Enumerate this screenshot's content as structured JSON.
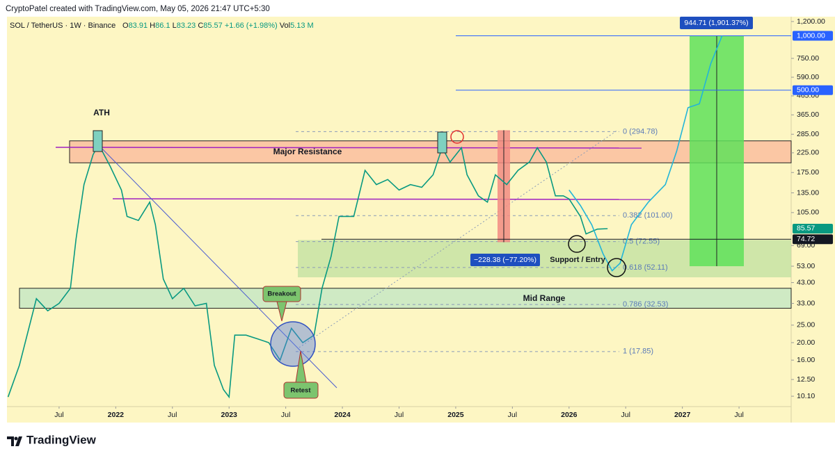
{
  "header": {
    "credit": "CryptoPatel created with TradingView.com, May 05, 2026 21:47 UTC+5:30",
    "symbol": "SOL / TetherUS · 1W · Binance",
    "ohlc": [
      {
        "label": "O",
        "value": 83.91
      },
      {
        "label": "H",
        "value": 86.1
      },
      {
        "label": "L",
        "value": 83.23
      },
      {
        "label": "C",
        "value": 85.57
      }
    ],
    "change": "+1.66 (+1.98%)",
    "volume_label": "Vol",
    "volume": "5.13 M"
  },
  "chart_data": {
    "type": "line",
    "log_scale": true,
    "background": "#fdf6c3",
    "xlim": [
      2021.04,
      2027.96
    ],
    "ylim": [
      8.85,
      1243
    ],
    "xticks": [
      {
        "value": 2021.5,
        "label": "Jul"
      },
      2022,
      {
        "value": 2022.5,
        "label": "Jul"
      },
      2023,
      {
        "value": 2023.5,
        "label": "Jul"
      },
      2024,
      {
        "value": 2024.5,
        "label": "Jul"
      },
      2025,
      {
        "value": 2025.5,
        "label": "Jul"
      },
      2026,
      {
        "value": 2026.5,
        "label": "Jul"
      },
      2027,
      {
        "value": 2027.5,
        "label": "Jul"
      }
    ],
    "yticks": [
      {
        "value": 1200,
        "label": "1,200.00"
      },
      {
        "value": 750,
        "label": "750.00"
      },
      {
        "value": 590,
        "label": "590.00"
      },
      {
        "value": 465,
        "label": "465.00"
      },
      {
        "value": 365,
        "label": "365.00"
      },
      {
        "value": 285,
        "label": "285.00"
      },
      {
        "value": 225,
        "label": "225.00"
      },
      {
        "value": 175,
        "label": "175.00"
      },
      {
        "value": 135,
        "label": "135.00"
      },
      {
        "value": 105,
        "label": "105.00"
      },
      {
        "value": 69,
        "label": "69.00"
      },
      {
        "value": 53,
        "label": "53.00"
      },
      {
        "value": 43,
        "label": "43.00"
      },
      {
        "value": 33,
        "label": "33.00"
      },
      {
        "value": 25,
        "label": "25.00"
      },
      {
        "value": 20,
        "label": "20.00"
      },
      {
        "value": 16,
        "label": "16.00"
      },
      {
        "value": 12.5,
        "label": "12.50"
      },
      {
        "value": 10.1,
        "label": "10.10"
      }
    ],
    "x": [
      2021.05,
      2021.15,
      2021.3,
      2021.4,
      2021.5,
      2021.6,
      2021.65,
      2021.72,
      2021.8,
      2021.85,
      2021.95,
      2022.05,
      2022.1,
      2022.2,
      2022.3,
      2022.35,
      2022.42,
      2022.5,
      2022.6,
      2022.7,
      2022.8,
      2022.87,
      2022.95,
      2023.0,
      2023.05,
      2023.15,
      2023.25,
      2023.35,
      2023.45,
      2023.55,
      2023.65,
      2023.75,
      2023.82,
      2023.9,
      2023.97,
      2024.1,
      2024.2,
      2024.3,
      2024.4,
      2024.5,
      2024.6,
      2024.7,
      2024.8,
      2024.88,
      2024.95,
      2025.05,
      2025.1,
      2025.2,
      2025.28,
      2025.35,
      2025.45,
      2025.55,
      2025.65,
      2025.72,
      2025.8,
      2025.88,
      2025.95,
      2026.0,
      2026.1,
      2026.15,
      2026.25,
      2026.34
    ],
    "series": [
      {
        "color": "#089981",
        "values": [
          10,
          15,
          35,
          30,
          33,
          40,
          75,
          150,
          220,
          250,
          190,
          140,
          100,
          95,
          120,
          90,
          45,
          35,
          40,
          32,
          33,
          15,
          11,
          10,
          22,
          22,
          21,
          20,
          16,
          24,
          20,
          22,
          40,
          60,
          100,
          100,
          180,
          150,
          160,
          140,
          150,
          145,
          170,
          240,
          200,
          240,
          170,
          130,
          120,
          170,
          150,
          180,
          200,
          240,
          200,
          130,
          130,
          125,
          100,
          80,
          85,
          85.57
        ]
      }
    ],
    "projection": {
      "color": "#22b5d8",
      "x": [
        2026.0,
        2026.1,
        2026.2,
        2026.3,
        2026.38,
        2026.45,
        2026.55,
        2026.7,
        2026.85,
        2026.95,
        2027.05,
        2027.15,
        2027.25,
        2027.35
      ],
      "values": [
        140,
        115,
        90,
        62,
        50,
        55,
        90,
        120,
        150,
        230,
        400,
        420,
        700,
        1000
      ]
    },
    "levels": [
      {
        "value": 1000,
        "label": "1,000.00",
        "color": "#2962ff"
      },
      {
        "value": 500,
        "label": "500.00",
        "color": "#2962ff"
      },
      {
        "value": 85.57,
        "label": "85.57",
        "color": "#089981"
      },
      {
        "value": 74.72,
        "label": "74.72",
        "color": "#131722"
      }
    ],
    "fib": [
      {
        "value": 294.78,
        "label": "0 (294.78)"
      },
      {
        "value": 101.0,
        "label": "0.382 (101.00)"
      },
      {
        "value": 72.55,
        "label": "0.5 (72.55)"
      },
      {
        "value": 52.11,
        "label": "0.618 (52.11)"
      },
      {
        "value": 32.53,
        "label": "0.786 (32.53)"
      },
      {
        "value": 17.85,
        "label": "1 (17.85)"
      }
    ],
    "zones": [
      {
        "label": "Major Resistance",
        "range": [
          198,
          262
        ],
        "color": "#f9b79a"
      },
      {
        "label": "Mid Range",
        "range": [
          31,
          40
        ],
        "color": "#bfe6c4"
      },
      {
        "range": [
          46,
          74
        ],
        "color": "#bfe0a0"
      }
    ],
    "measures": [
      {
        "label": "−228.38 (−77.20%)",
        "range": [
          72,
          300
        ],
        "color": "#f28b82"
      },
      {
        "label": "944.71 (1,901.37%)",
        "range": [
          53,
          1000
        ],
        "color": "#5fe05a"
      }
    ],
    "annotations": [
      "ATH",
      "Breakout",
      "Retest",
      "Support / Entry"
    ]
  },
  "footer": {
    "brand": "TradingView"
  }
}
